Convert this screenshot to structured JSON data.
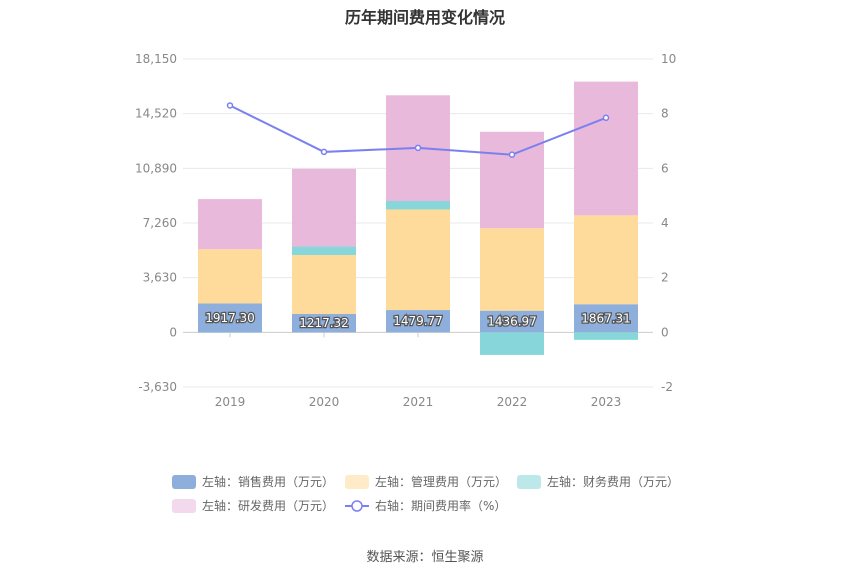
{
  "chart_data": {
    "type": "bar",
    "title": "历年期间费用变化情况",
    "categories": [
      "2019",
      "2020",
      "2021",
      "2022",
      "2023"
    ],
    "left_axis": {
      "min": -3630,
      "max": 18150,
      "ticks": [
        "18,150",
        "14,520",
        "10,890",
        "7,260",
        "3,630",
        "0",
        "-3,630"
      ],
      "tick_values": [
        18150,
        14520,
        10890,
        7260,
        3630,
        0,
        -3630
      ]
    },
    "right_axis": {
      "min": -2,
      "max": 10,
      "ticks": [
        "10",
        "8",
        "6",
        "4",
        "2",
        "0",
        "-2"
      ],
      "tick_values": [
        10,
        8,
        6,
        4,
        2,
        0,
        -2
      ]
    },
    "series": [
      {
        "name": "左轴：销售费用（万元）",
        "axis": "left",
        "kind": "bar",
        "color": "#8eaedb",
        "values": [
          1917.3,
          1217.32,
          1479.77,
          1436.97,
          1867.31
        ],
        "labels": [
          "1917.30",
          "1217.32",
          "1479.77",
          "1436.97",
          "1867.31"
        ]
      },
      {
        "name": "左轴：管理费用（万元）",
        "axis": "left",
        "kind": "bar",
        "color": "#ffdb9b",
        "values": [
          3600,
          3920,
          6680,
          5480,
          5900
        ]
      },
      {
        "name": "左轴：财务费用（万元）",
        "axis": "left",
        "kind": "bar",
        "color": "#87d6d9",
        "values": [
          -20,
          560,
          560,
          -1500,
          -500
        ]
      },
      {
        "name": "左轴：研发费用（万元）",
        "axis": "left",
        "kind": "bar",
        "color": "#e8b9da",
        "values": [
          3330,
          5160,
          7020,
          6400,
          8880
        ]
      },
      {
        "name": "右轴：期间费用率（%）",
        "axis": "right",
        "kind": "line",
        "color": "#7b80f0",
        "values": [
          8.3,
          6.6,
          6.75,
          6.5,
          7.85
        ]
      }
    ],
    "grid": true,
    "legend_position": "bottom"
  },
  "source": "数据来源：恒生聚源"
}
